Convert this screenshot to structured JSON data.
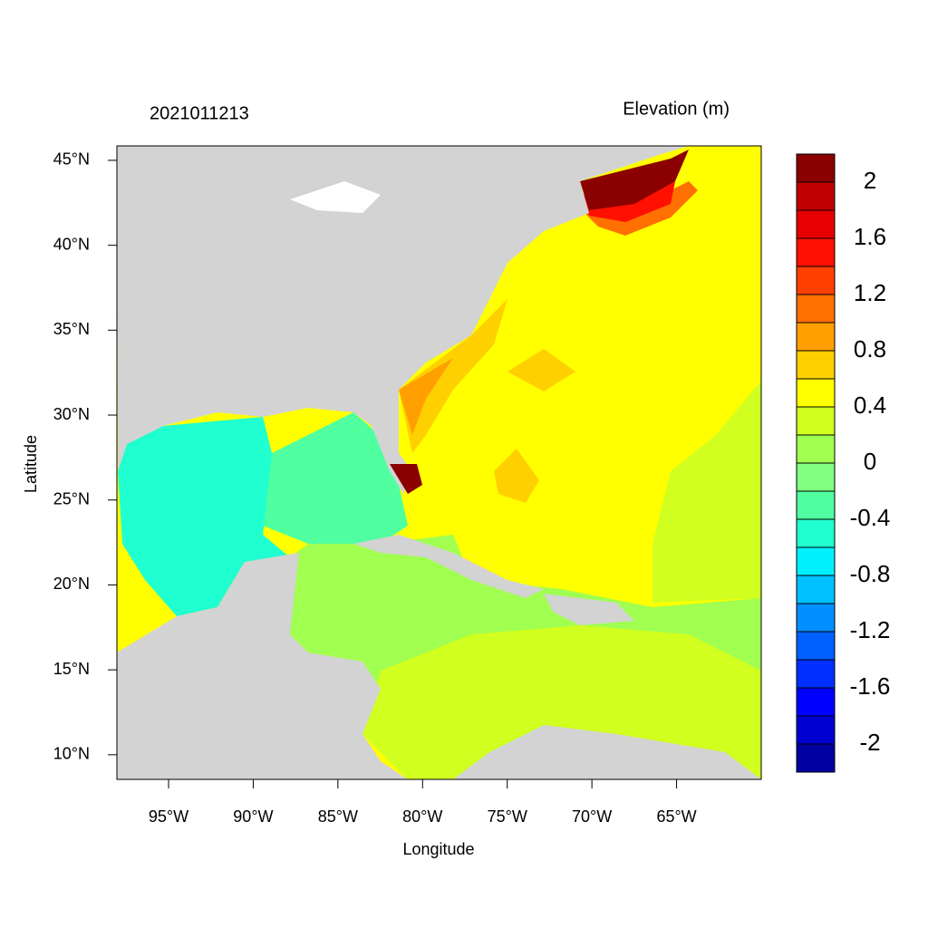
{
  "map": {
    "title": "2021011213",
    "variable": "Elevation (m)",
    "x_label": "Longitude",
    "y_label": "Latitude",
    "xlim": [
      -98.05,
      -60
    ],
    "ylim": [
      8.55,
      45.85
    ],
    "xticks": [
      {
        "value": -95,
        "label": "95°W"
      },
      {
        "value": -90,
        "label": "90°W"
      },
      {
        "value": -85,
        "label": "85°W"
      },
      {
        "value": -80,
        "label": "80°W"
      },
      {
        "value": -75,
        "label": "75°W"
      },
      {
        "value": -70,
        "label": "70°W"
      },
      {
        "value": -65,
        "label": "65°W"
      }
    ],
    "yticks": [
      {
        "value": 10,
        "label": "10°N"
      },
      {
        "value": 15,
        "label": "15°N"
      },
      {
        "value": 20,
        "label": "20°N"
      },
      {
        "value": 25,
        "label": "25°N"
      },
      {
        "value": 30,
        "label": "30°N"
      },
      {
        "value": 35,
        "label": "35°N"
      },
      {
        "value": 40,
        "label": "40°N"
      },
      {
        "value": 45,
        "label": "45°N"
      }
    ],
    "colorbar": {
      "clim": [
        -2.2,
        2.2
      ],
      "colors": [
        "#0000a0",
        "#0000d0",
        "#0000ff",
        "#0030ff",
        "#0060ff",
        "#0090ff",
        "#00c0ff",
        "#00f0ff",
        "#20ffd0",
        "#50ffa0",
        "#80ff80",
        "#a0ff50",
        "#d0ff20",
        "#ffff00",
        "#ffd000",
        "#ffa000",
        "#ff7000",
        "#ff4000",
        "#ff1000",
        "#e80000",
        "#c00000",
        "#8b0000"
      ],
      "ticks": [
        -2,
        -1.6,
        -1.2,
        -0.8,
        -0.4,
        0,
        0.4,
        0.8,
        1.2,
        1.6,
        2
      ]
    }
  }
}
